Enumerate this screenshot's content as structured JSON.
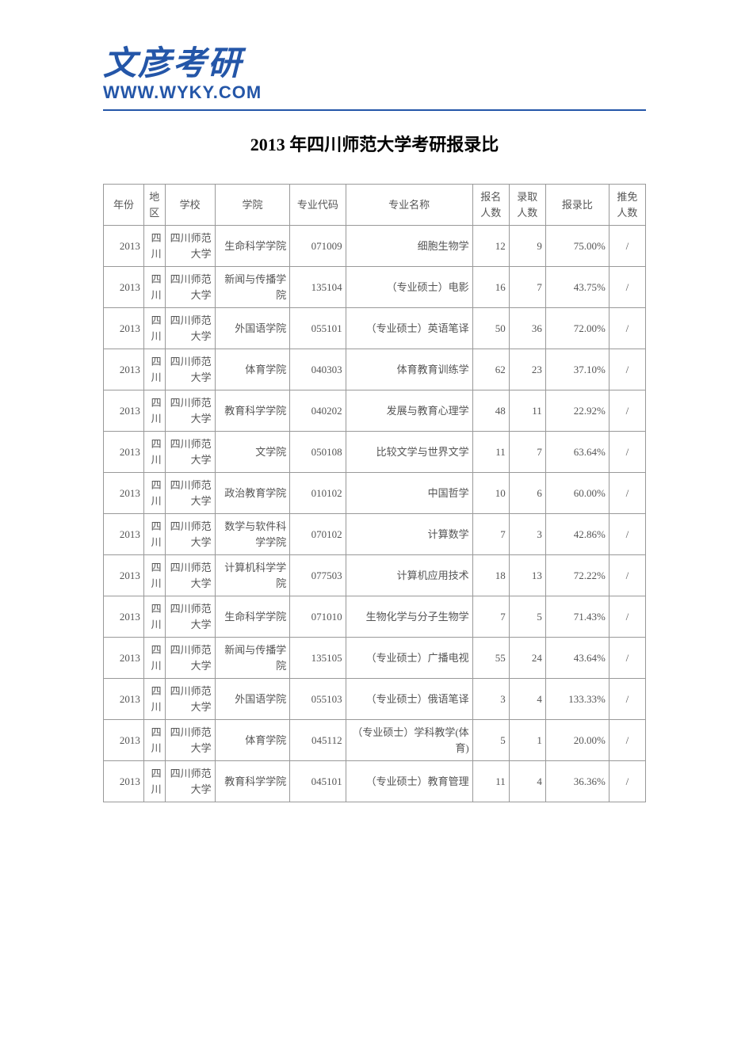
{
  "logo": {
    "chinese": "文彦考研",
    "url": "WWW.WYKY.COM"
  },
  "title": "2013 年四川师范大学考研报录比",
  "table": {
    "headers": [
      "年份",
      "地区",
      "学校",
      "学院",
      "专业代码",
      "专业名称",
      "报名人数",
      "录取人数",
      "报录比",
      "推免人数"
    ],
    "rows": [
      [
        "2013",
        "四川",
        "四川师范大学",
        "生命科学学院",
        "071009",
        "细胞生物学",
        "12",
        "9",
        "75.00%",
        "/"
      ],
      [
        "2013",
        "四川",
        "四川师范大学",
        "新闻与传播学院",
        "135104",
        "（专业硕士）电影",
        "16",
        "7",
        "43.75%",
        "/"
      ],
      [
        "2013",
        "四川",
        "四川师范大学",
        "外国语学院",
        "055101",
        "（专业硕士）英语笔译",
        "50",
        "36",
        "72.00%",
        "/"
      ],
      [
        "2013",
        "四川",
        "四川师范大学",
        "体育学院",
        "040303",
        "体育教育训练学",
        "62",
        "23",
        "37.10%",
        "/"
      ],
      [
        "2013",
        "四川",
        "四川师范大学",
        "教育科学学院",
        "040202",
        "发展与教育心理学",
        "48",
        "11",
        "22.92%",
        "/"
      ],
      [
        "2013",
        "四川",
        "四川师范大学",
        "文学院",
        "050108",
        "比较文学与世界文学",
        "11",
        "7",
        "63.64%",
        "/"
      ],
      [
        "2013",
        "四川",
        "四川师范大学",
        "政治教育学院",
        "010102",
        "中国哲学",
        "10",
        "6",
        "60.00%",
        "/"
      ],
      [
        "2013",
        "四川",
        "四川师范大学",
        "数学与软件科学学院",
        "070102",
        "计算数学",
        "7",
        "3",
        "42.86%",
        "/"
      ],
      [
        "2013",
        "四川",
        "四川师范大学",
        "计算机科学学院",
        "077503",
        "计算机应用技术",
        "18",
        "13",
        "72.22%",
        "/"
      ],
      [
        "2013",
        "四川",
        "四川师范大学",
        "生命科学学院",
        "071010",
        "生物化学与分子生物学",
        "7",
        "5",
        "71.43%",
        "/"
      ],
      [
        "2013",
        "四川",
        "四川师范大学",
        "新闻与传播学院",
        "135105",
        "（专业硕士）广播电视",
        "55",
        "24",
        "43.64%",
        "/"
      ],
      [
        "2013",
        "四川",
        "四川师范大学",
        "外国语学院",
        "055103",
        "（专业硕士）俄语笔译",
        "3",
        "4",
        "133.33%",
        "/"
      ],
      [
        "2013",
        "四川",
        "四川师范大学",
        "体育学院",
        "045112",
        "（专业硕士）学科教学(体育)",
        "5",
        "1",
        "20.00%",
        "/"
      ],
      [
        "2013",
        "四川",
        "四川师范大学",
        "教育科学学院",
        "045101",
        "（专业硕士）教育管理",
        "11",
        "4",
        "36.36%",
        "/"
      ]
    ]
  },
  "colors": {
    "brand": "#2456a8",
    "border": "#999999",
    "text": "#555555",
    "title": "#000000",
    "background": "#ffffff"
  }
}
